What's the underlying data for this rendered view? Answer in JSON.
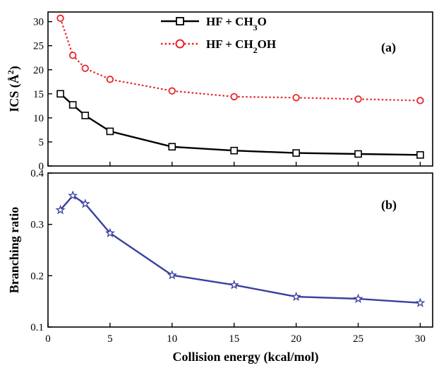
{
  "chart_data": [
    {
      "type": "line",
      "panel_label": "(a)",
      "ylabel": "ICS (Å²)",
      "ylim": [
        0,
        32
      ],
      "yticks": [
        0,
        5,
        10,
        15,
        20,
        25,
        30
      ],
      "xlim": [
        0,
        31
      ],
      "legend_position": "top-center",
      "series": [
        {
          "name": "HF + CH₃O",
          "color": "#000000",
          "marker": "square",
          "line_style": "solid",
          "x": [
            1,
            2,
            3,
            5,
            10,
            15,
            20,
            25,
            30
          ],
          "y": [
            15.0,
            12.7,
            10.5,
            7.2,
            4.0,
            3.2,
            2.7,
            2.5,
            2.3
          ]
        },
        {
          "name": "HF + CH₂OH",
          "color": "#e8262a",
          "marker": "circle",
          "line_style": "dotted",
          "x": [
            1,
            2,
            3,
            5,
            10,
            15,
            20,
            25,
            30
          ],
          "y": [
            30.7,
            23.0,
            20.3,
            18.0,
            15.6,
            14.4,
            14.2,
            13.9,
            13.6
          ]
        }
      ]
    },
    {
      "type": "line",
      "panel_label": "(b)",
      "ylabel": "Branching ratio",
      "xlabel": "Collision energy (kcal/mol)",
      "ylim": [
        0.1,
        0.4
      ],
      "yticks": [
        0.1,
        0.2,
        0.3,
        0.4
      ],
      "xlim": [
        0,
        31
      ],
      "xticks": [
        0,
        5,
        10,
        15,
        20,
        25,
        30
      ],
      "series": [
        {
          "color": "#3a3fa0",
          "marker": "star",
          "line_style": "solid",
          "x": [
            1,
            2,
            3,
            5,
            10,
            15,
            20,
            25,
            30
          ],
          "y": [
            0.328,
            0.356,
            0.34,
            0.283,
            0.201,
            0.182,
            0.159,
            0.155,
            0.147
          ]
        }
      ]
    }
  ],
  "legend": {
    "entry1": {
      "prefix": "HF + CH",
      "sub": "3",
      "suffix": "O"
    },
    "entry2": {
      "prefix": "HF + CH",
      "sub": "2",
      "suffix": "OH"
    }
  },
  "labels": {
    "ylabel_a_base": "ICS (Å",
    "ylabel_a_sup": "2",
    "ylabel_a_close": ")",
    "ylabel_b": "Branching ratio",
    "xlabel": "Collision energy (kcal/mol)",
    "panel_a": "(a)",
    "panel_b": "(b)"
  }
}
